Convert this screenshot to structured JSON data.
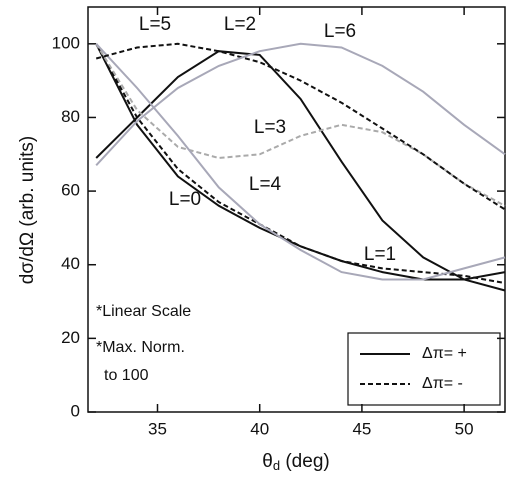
{
  "chart_data": {
    "type": "line",
    "x_label": [
      "θ",
      "d",
      " (deg)"
    ],
    "y_label": "dσ/dΩ (arb. units)",
    "xlim": [
      31.6,
      52.0
    ],
    "ylim": [
      0,
      110
    ],
    "xticks": [
      35,
      40,
      45,
      50
    ],
    "yticks": [
      0,
      20,
      40,
      60,
      80,
      100
    ],
    "x": [
      32,
      34,
      36,
      38,
      40,
      42,
      44,
      46,
      48,
      50,
      52
    ],
    "series": [
      {
        "name": "L=0",
        "color": "#111111",
        "style": "solid",
        "values": [
          100,
          78,
          64,
          56,
          50,
          45,
          41,
          38,
          36,
          36,
          38
        ]
      },
      {
        "name": "L=1",
        "color": "#111111",
        "style": "dashed",
        "values": [
          100,
          80,
          66,
          57,
          51,
          45,
          41,
          39,
          38,
          37,
          35
        ]
      },
      {
        "name": "L=2",
        "color": "#111111",
        "style": "solid",
        "values": [
          69,
          80,
          91,
          98,
          97,
          85,
          68,
          52,
          42,
          36,
          33
        ]
      },
      {
        "name": "L=3",
        "color": "#aaaaaa",
        "style": "dashed",
        "values": [
          100,
          82,
          72,
          69,
          70,
          75,
          78,
          76,
          70,
          62,
          56
        ]
      },
      {
        "name": "L=4",
        "color": "#a8a8b8",
        "style": "solid",
        "values": [
          100,
          88,
          75,
          61,
          51,
          44,
          38,
          36,
          36,
          39,
          42
        ]
      },
      {
        "name": "L=5",
        "color": "#111111",
        "style": "dashed",
        "values": [
          96,
          99,
          100,
          98,
          95,
          90,
          84,
          77,
          70,
          62,
          55
        ]
      },
      {
        "name": "L=6",
        "color": "#a8a8b8",
        "style": "solid",
        "values": [
          67,
          79,
          88,
          94,
          98,
          100,
          99,
          94,
          87,
          78,
          70
        ]
      }
    ],
    "legend": [
      {
        "label": "Δπ= +",
        "style": "solid"
      },
      {
        "label": "Δπ= -",
        "style": "dashed"
      }
    ],
    "annotations": [
      "*Linear Scale",
      "*Max. Norm.",
      "to 100"
    ]
  }
}
